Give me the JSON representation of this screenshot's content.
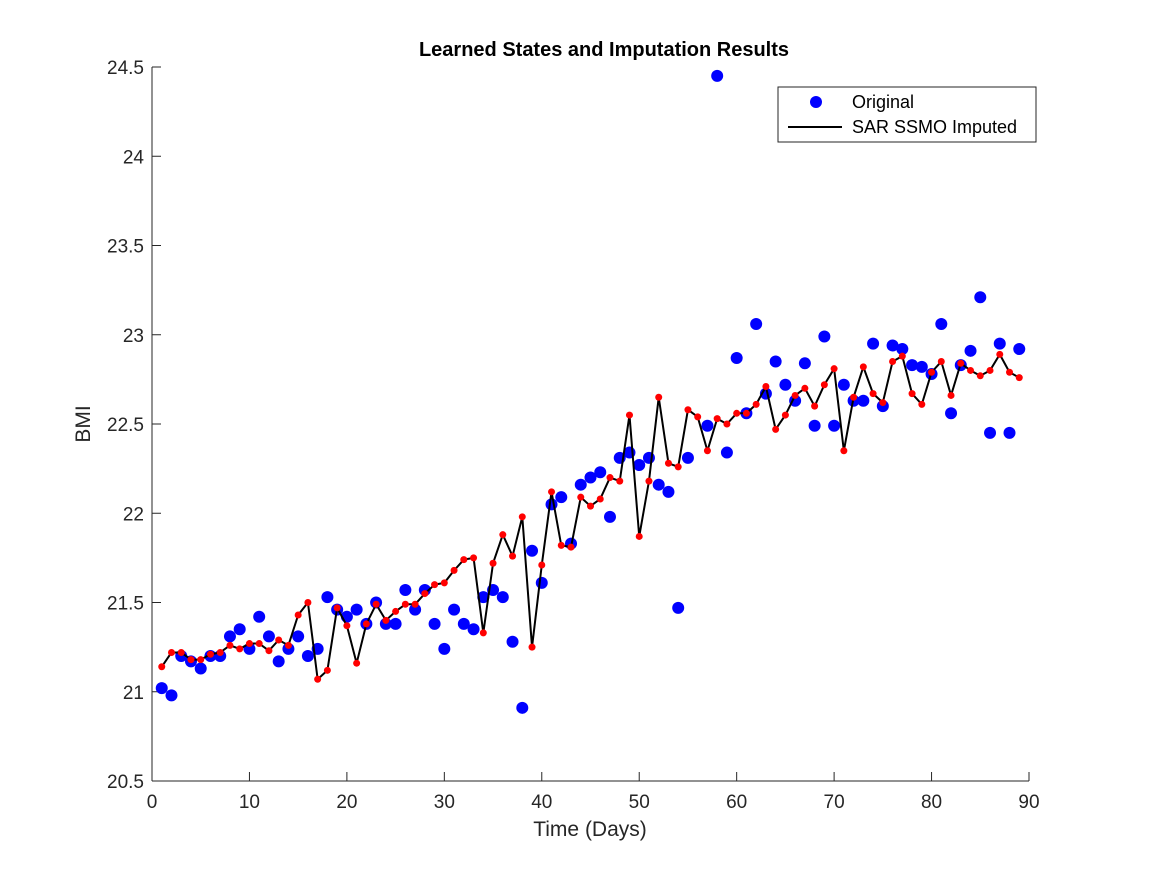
{
  "chart_data": {
    "type": "scatter",
    "title": "Learned States and Imputation Results",
    "xlabel": "Time (Days)",
    "ylabel": "BMI",
    "xlim": [
      0,
      90
    ],
    "ylim": [
      20.5,
      24.5
    ],
    "xticks": [
      0,
      10,
      20,
      30,
      40,
      50,
      60,
      70,
      80,
      90
    ],
    "yticks": [
      20.5,
      21,
      21.5,
      22,
      22.5,
      23,
      23.5,
      24,
      24.5
    ],
    "grid": false,
    "legend_location": "top-right",
    "series": [
      {
        "name": "Original",
        "kind": "markers",
        "color": "#0000ff",
        "x": [
          1,
          2,
          3,
          4,
          5,
          6,
          7,
          8,
          9,
          10,
          11,
          12,
          13,
          14,
          15,
          16,
          17,
          18,
          19,
          20,
          21,
          22,
          23,
          24,
          25,
          26,
          27,
          28,
          29,
          30,
          31,
          32,
          33,
          34,
          35,
          36,
          37,
          38,
          39,
          40,
          41,
          42,
          43,
          44,
          45,
          46,
          47,
          48,
          49,
          50,
          51,
          52,
          53,
          54,
          55,
          57,
          58,
          59,
          60,
          61,
          62,
          63,
          64,
          65,
          66,
          67,
          68,
          69,
          70,
          71,
          72,
          73,
          74,
          75,
          76,
          77,
          78,
          79,
          80,
          81,
          82,
          83,
          84,
          85,
          86,
          87,
          88,
          89
        ],
        "y": [
          21.02,
          20.98,
          21.2,
          21.17,
          21.13,
          21.2,
          21.2,
          21.31,
          21.35,
          21.24,
          21.42,
          21.31,
          21.17,
          21.24,
          21.31,
          21.2,
          21.24,
          21.53,
          21.46,
          21.42,
          21.46,
          21.38,
          21.5,
          21.38,
          21.38,
          21.57,
          21.46,
          21.57,
          21.38,
          21.24,
          21.46,
          21.38,
          21.35,
          21.53,
          21.57,
          21.53,
          21.28,
          20.91,
          21.79,
          21.61,
          22.05,
          22.09,
          21.83,
          22.16,
          22.2,
          22.23,
          21.98,
          22.31,
          22.34,
          22.27,
          22.31,
          22.16,
          22.12,
          21.47,
          22.31,
          22.49,
          24.45,
          22.34,
          22.87,
          22.56,
          23.06,
          22.67,
          22.85,
          22.72,
          22.63,
          22.84,
          22.49,
          22.99,
          22.49,
          22.72,
          22.63,
          22.63,
          22.95,
          22.6,
          22.94,
          22.92,
          22.83,
          22.82,
          22.78,
          23.06,
          22.56,
          22.83,
          22.91,
          23.21,
          22.45,
          22.95,
          22.45,
          22.92
        ]
      },
      {
        "name": "SAR SSMO Imputed",
        "kind": "line-with-red-markers",
        "color": "#000000",
        "marker_color": "#ff0000",
        "x": [
          1,
          2,
          3,
          4,
          5,
          6,
          7,
          8,
          9,
          10,
          11,
          12,
          13,
          14,
          15,
          16,
          17,
          18,
          19,
          20,
          21,
          22,
          23,
          24,
          25,
          26,
          27,
          28,
          29,
          30,
          31,
          32,
          33,
          34,
          35,
          36,
          37,
          38,
          39,
          40,
          41,
          42,
          43,
          44,
          45,
          46,
          47,
          48,
          49,
          50,
          51,
          52,
          53,
          54,
          55,
          56,
          57,
          58,
          59,
          60,
          61,
          62,
          63,
          64,
          65,
          66,
          67,
          68,
          69,
          70,
          71,
          72,
          73,
          74,
          75,
          76,
          77,
          78,
          79,
          80,
          81,
          82,
          83,
          84,
          85,
          86,
          87,
          88,
          89
        ],
        "y": [
          21.14,
          21.22,
          21.22,
          21.18,
          21.18,
          21.21,
          21.22,
          21.26,
          21.24,
          21.27,
          21.27,
          21.23,
          21.29,
          21.26,
          21.43,
          21.5,
          21.07,
          21.12,
          21.47,
          21.37,
          21.16,
          21.38,
          21.49,
          21.4,
          21.45,
          21.49,
          21.49,
          21.55,
          21.6,
          21.61,
          21.68,
          21.74,
          21.75,
          21.33,
          21.72,
          21.88,
          21.76,
          21.98,
          21.25,
          21.71,
          22.12,
          21.82,
          21.81,
          22.09,
          22.04,
          22.08,
          22.2,
          22.18,
          22.55,
          21.87,
          22.18,
          22.65,
          22.28,
          22.26,
          22.58,
          22.54,
          22.35,
          22.53,
          22.5,
          22.56,
          22.56,
          22.61,
          22.71,
          22.47,
          22.55,
          22.66,
          22.7,
          22.6,
          22.72,
          22.81,
          22.35,
          22.65,
          22.82,
          22.67,
          22.62,
          22.85,
          22.88,
          22.67,
          22.61,
          22.79,
          22.85,
          22.66,
          22.84,
          22.8,
          22.77,
          22.8,
          22.89,
          22.79,
          22.76
        ]
      }
    ]
  }
}
